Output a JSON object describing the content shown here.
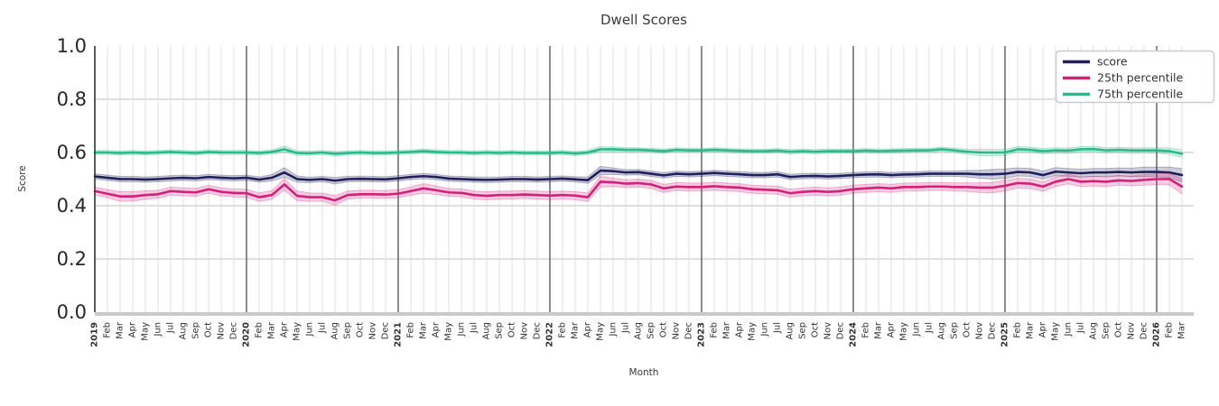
{
  "title": "Dwell Scores",
  "axes": {
    "xlabel": "Month",
    "ylabel": "Score"
  },
  "legend": {
    "position": "upper right",
    "items": [
      {
        "label": "score"
      },
      {
        "label": "25th percentile"
      },
      {
        "label": "75th percentile"
      }
    ]
  },
  "colors": {
    "score": "#20205d",
    "p25": "#d4207c",
    "p75": "#2bb98c",
    "grid_minor": "#dcdcdc",
    "grid_major_horizontal": "#cccccc",
    "year_line": "#404040",
    "spine_left": "#333333",
    "spine_bottom": "#c9c9c9",
    "legend_border": "#cccccc",
    "background": "#ffffff"
  },
  "chart_data": {
    "type": "line",
    "title": "Dwell Scores",
    "xlabel": "Month",
    "ylabel": "Score",
    "ylim": [
      0.0,
      1.0
    ],
    "grid": true,
    "legend_position": "upper right",
    "y_tick_values": [
      0.0,
      0.2,
      0.4,
      0.6,
      0.8,
      1.0
    ],
    "y_tick_labels": [
      "0.0",
      "0.2",
      "0.4",
      "0.6",
      "0.8",
      "1.0"
    ],
    "x_tick_labels": [
      "2019",
      "Feb",
      "Mar",
      "Apr",
      "May",
      "Jun",
      "Jul",
      "Aug",
      "Sep",
      "Oct",
      "Nov",
      "Dec",
      "2020",
      "Feb",
      "Mar",
      "Apr",
      "May",
      "Jun",
      "Jul",
      "Aug",
      "Sep",
      "Oct",
      "Nov",
      "Dec",
      "2021",
      "Feb",
      "Mar",
      "Apr",
      "May",
      "Jun",
      "Jul",
      "Aug",
      "Sep",
      "Oct",
      "Nov",
      "Dec",
      "2022",
      "Feb",
      "Mar",
      "Apr",
      "May",
      "Jun",
      "Jul",
      "Aug",
      "Sep",
      "Oct",
      "Nov",
      "Dec",
      "2023",
      "Feb",
      "Mar",
      "Apr",
      "May",
      "Jun",
      "Jul",
      "Aug",
      "Sep",
      "Oct",
      "Nov",
      "Dec",
      "2024",
      "Feb",
      "Mar",
      "Apr",
      "May",
      "Jun",
      "Jul",
      "Aug",
      "Sep",
      "Oct",
      "Nov",
      "Dec",
      "2025",
      "Feb",
      "Mar",
      "Apr",
      "May",
      "Jun",
      "Jul",
      "Aug",
      "Sep",
      "Oct",
      "Nov",
      "Dec",
      "2026",
      "Feb",
      "Mar"
    ],
    "series": [
      {
        "name": "score",
        "color": "#20205d",
        "values": [
          0.51,
          0.505,
          0.5,
          0.5,
          0.498,
          0.5,
          0.503,
          0.505,
          0.503,
          0.508,
          0.505,
          0.503,
          0.505,
          0.498,
          0.505,
          0.525,
          0.5,
          0.497,
          0.5,
          0.494,
          0.5,
          0.501,
          0.5,
          0.499,
          0.503,
          0.508,
          0.511,
          0.508,
          0.502,
          0.5,
          0.498,
          0.497,
          0.498,
          0.5,
          0.5,
          0.498,
          0.5,
          0.502,
          0.499,
          0.496,
          0.532,
          0.53,
          0.525,
          0.526,
          0.52,
          0.514,
          0.52,
          0.518,
          0.52,
          0.523,
          0.52,
          0.518,
          0.515,
          0.515,
          0.518,
          0.508,
          0.511,
          0.512,
          0.51,
          0.512,
          0.515,
          0.517,
          0.518,
          0.515,
          0.517,
          0.518,
          0.52,
          0.52,
          0.52,
          0.52,
          0.518,
          0.518,
          0.52,
          0.527,
          0.525,
          0.515,
          0.528,
          0.525,
          0.522,
          0.525,
          0.525,
          0.527,
          0.525,
          0.527,
          0.527,
          0.525,
          0.515
        ],
        "band_halfwidth": [
          0.01,
          0.01,
          0.01,
          0.01,
          0.01,
          0.01,
          0.01,
          0.01,
          0.01,
          0.01,
          0.01,
          0.01,
          0.01,
          0.01,
          0.012,
          0.018,
          0.012,
          0.01,
          0.01,
          0.012,
          0.01,
          0.01,
          0.01,
          0.01,
          0.01,
          0.01,
          0.01,
          0.01,
          0.01,
          0.01,
          0.01,
          0.01,
          0.01,
          0.01,
          0.01,
          0.01,
          0.01,
          0.01,
          0.01,
          0.012,
          0.016,
          0.012,
          0.01,
          0.01,
          0.01,
          0.01,
          0.01,
          0.01,
          0.01,
          0.01,
          0.01,
          0.01,
          0.01,
          0.01,
          0.01,
          0.01,
          0.01,
          0.01,
          0.01,
          0.01,
          0.01,
          0.01,
          0.01,
          0.01,
          0.01,
          0.01,
          0.01,
          0.01,
          0.01,
          0.012,
          0.015,
          0.018,
          0.018,
          0.015,
          0.015,
          0.015,
          0.015,
          0.015,
          0.015,
          0.015,
          0.015,
          0.015,
          0.016,
          0.018,
          0.018,
          0.02,
          0.025
        ]
      },
      {
        "name": "25th percentile",
        "color": "#d4207c",
        "values": [
          0.455,
          0.445,
          0.435,
          0.435,
          0.44,
          0.443,
          0.455,
          0.452,
          0.45,
          0.462,
          0.452,
          0.448,
          0.447,
          0.432,
          0.44,
          0.48,
          0.437,
          0.432,
          0.432,
          0.42,
          0.44,
          0.443,
          0.443,
          0.442,
          0.445,
          0.455,
          0.465,
          0.458,
          0.45,
          0.448,
          0.44,
          0.437,
          0.44,
          0.44,
          0.442,
          0.44,
          0.438,
          0.44,
          0.438,
          0.432,
          0.49,
          0.488,
          0.483,
          0.485,
          0.48,
          0.465,
          0.472,
          0.47,
          0.47,
          0.473,
          0.47,
          0.468,
          0.462,
          0.46,
          0.458,
          0.447,
          0.452,
          0.455,
          0.452,
          0.455,
          0.462,
          0.465,
          0.468,
          0.465,
          0.47,
          0.47,
          0.472,
          0.472,
          0.47,
          0.47,
          0.468,
          0.468,
          0.475,
          0.485,
          0.483,
          0.472,
          0.49,
          0.5,
          0.49,
          0.492,
          0.49,
          0.495,
          0.493,
          0.497,
          0.5,
          0.5,
          0.472
        ],
        "band_halfwidth": [
          0.015,
          0.015,
          0.018,
          0.018,
          0.016,
          0.015,
          0.015,
          0.015,
          0.015,
          0.015,
          0.015,
          0.015,
          0.015,
          0.016,
          0.016,
          0.022,
          0.018,
          0.016,
          0.015,
          0.018,
          0.015,
          0.015,
          0.015,
          0.015,
          0.015,
          0.016,
          0.018,
          0.016,
          0.015,
          0.015,
          0.015,
          0.015,
          0.015,
          0.015,
          0.015,
          0.015,
          0.015,
          0.015,
          0.015,
          0.016,
          0.02,
          0.016,
          0.015,
          0.015,
          0.015,
          0.015,
          0.015,
          0.015,
          0.015,
          0.015,
          0.015,
          0.015,
          0.015,
          0.015,
          0.015,
          0.015,
          0.015,
          0.015,
          0.015,
          0.015,
          0.015,
          0.015,
          0.015,
          0.015,
          0.015,
          0.015,
          0.015,
          0.015,
          0.015,
          0.016,
          0.018,
          0.02,
          0.02,
          0.018,
          0.018,
          0.018,
          0.018,
          0.018,
          0.018,
          0.018,
          0.018,
          0.018,
          0.018,
          0.02,
          0.02,
          0.022,
          0.028
        ]
      },
      {
        "name": "75th percentile",
        "color": "#2bb98c",
        "values": [
          0.6,
          0.6,
          0.598,
          0.6,
          0.598,
          0.6,
          0.602,
          0.6,
          0.598,
          0.602,
          0.6,
          0.6,
          0.6,
          0.598,
          0.602,
          0.612,
          0.598,
          0.597,
          0.6,
          0.595,
          0.598,
          0.6,
          0.598,
          0.598,
          0.6,
          0.602,
          0.605,
          0.602,
          0.6,
          0.6,
          0.598,
          0.6,
          0.598,
          0.6,
          0.598,
          0.598,
          0.598,
          0.6,
          0.596,
          0.6,
          0.612,
          0.612,
          0.61,
          0.61,
          0.608,
          0.605,
          0.61,
          0.608,
          0.608,
          0.61,
          0.608,
          0.606,
          0.605,
          0.605,
          0.607,
          0.603,
          0.605,
          0.603,
          0.605,
          0.605,
          0.605,
          0.607,
          0.605,
          0.606,
          0.607,
          0.608,
          0.608,
          0.612,
          0.608,
          0.603,
          0.6,
          0.6,
          0.6,
          0.612,
          0.61,
          0.605,
          0.608,
          0.607,
          0.612,
          0.613,
          0.608,
          0.61,
          0.608,
          0.608,
          0.608,
          0.605,
          0.595
        ],
        "band_halfwidth": [
          0.008,
          0.008,
          0.008,
          0.008,
          0.008,
          0.008,
          0.008,
          0.008,
          0.008,
          0.008,
          0.008,
          0.008,
          0.008,
          0.008,
          0.008,
          0.012,
          0.009,
          0.008,
          0.008,
          0.009,
          0.008,
          0.008,
          0.008,
          0.008,
          0.008,
          0.008,
          0.008,
          0.008,
          0.008,
          0.008,
          0.008,
          0.008,
          0.008,
          0.008,
          0.008,
          0.008,
          0.008,
          0.008,
          0.008,
          0.008,
          0.01,
          0.009,
          0.008,
          0.008,
          0.008,
          0.008,
          0.008,
          0.008,
          0.008,
          0.008,
          0.008,
          0.008,
          0.008,
          0.008,
          0.008,
          0.008,
          0.008,
          0.008,
          0.008,
          0.008,
          0.008,
          0.008,
          0.008,
          0.008,
          0.008,
          0.008,
          0.008,
          0.008,
          0.008,
          0.01,
          0.012,
          0.012,
          0.012,
          0.01,
          0.01,
          0.01,
          0.01,
          0.01,
          0.01,
          0.01,
          0.01,
          0.01,
          0.01,
          0.01,
          0.01,
          0.012,
          0.014
        ]
      }
    ]
  }
}
